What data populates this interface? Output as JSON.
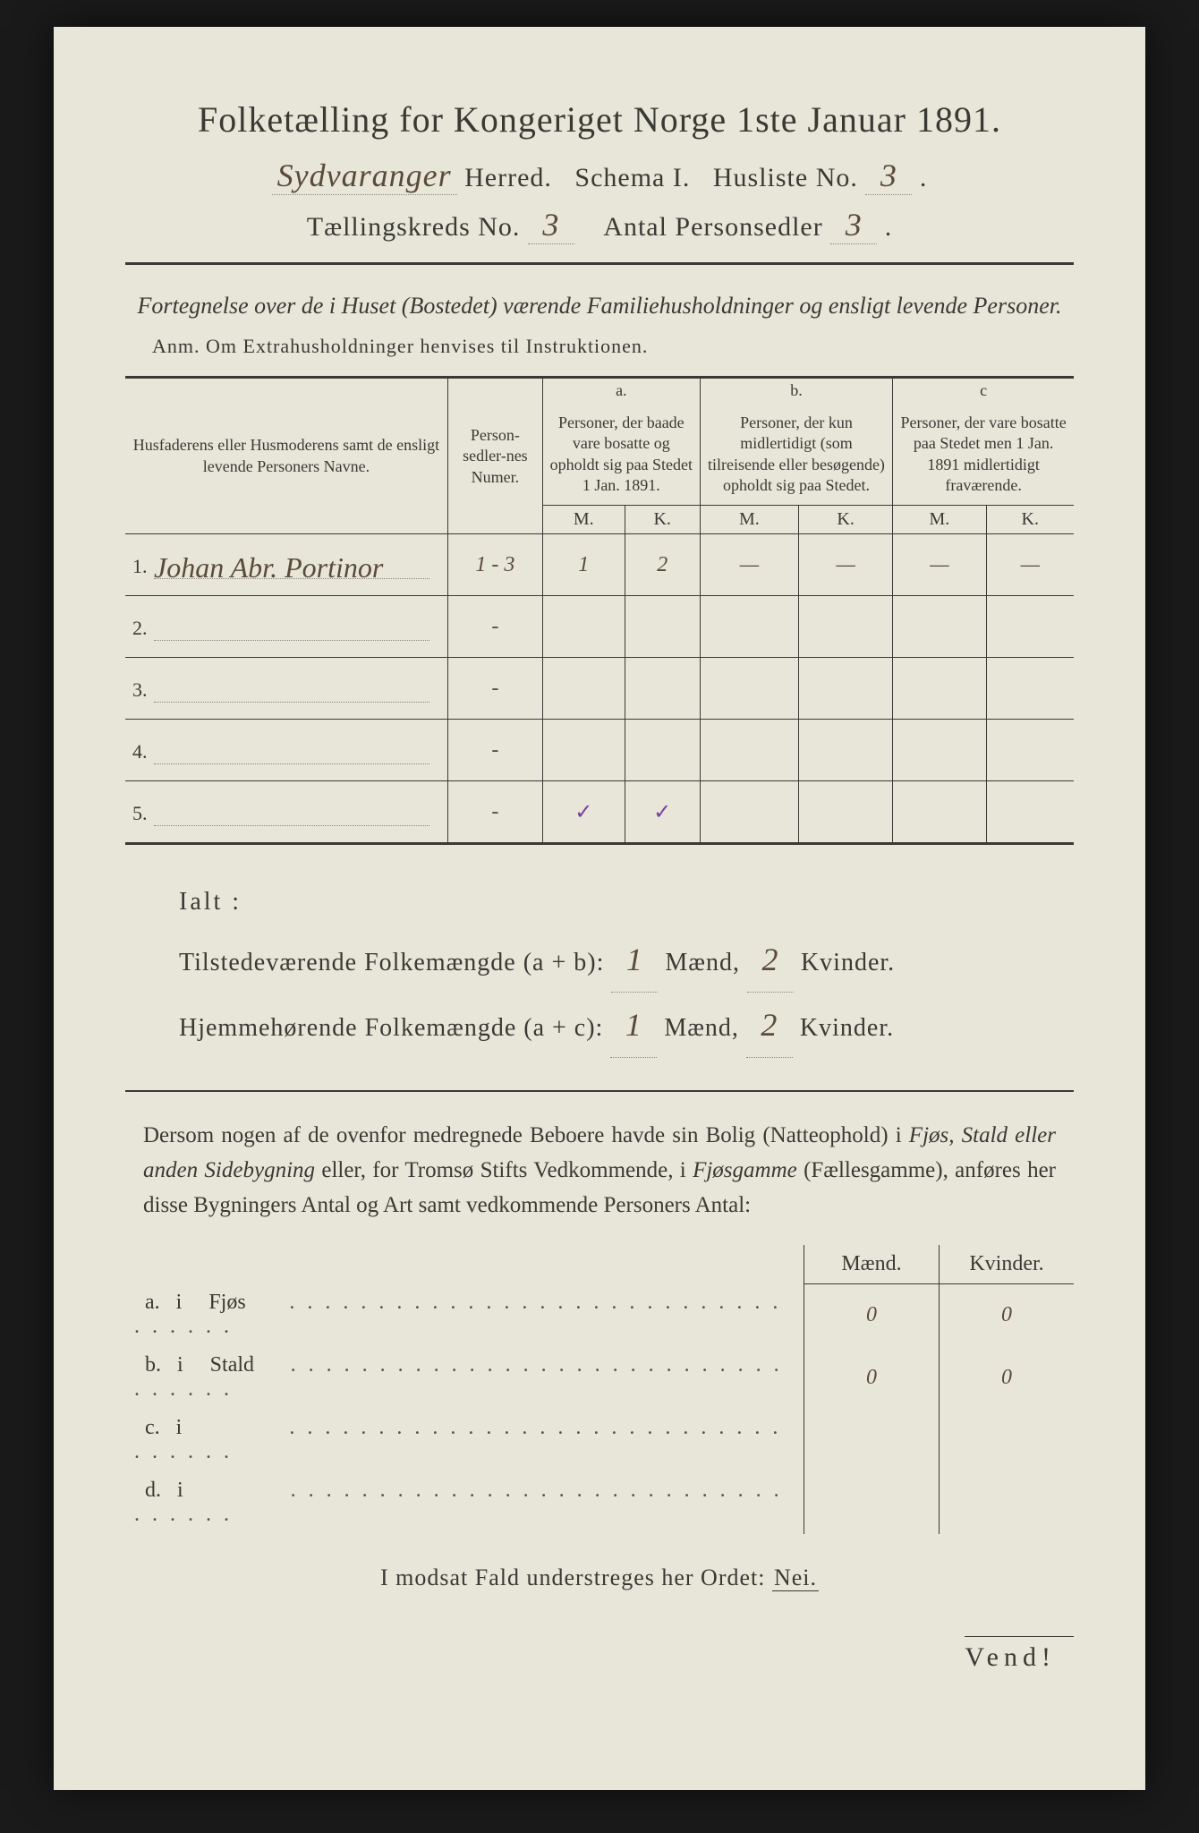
{
  "title": "Folketælling for Kongeriget Norge 1ste Januar 1891.",
  "header": {
    "herred_hand": "Sydvaranger",
    "herred_label": "Herred.",
    "schema_label": "Schema I.",
    "husliste_label": "Husliste No.",
    "husliste_no": "3",
    "kreds_label": "Tællingskreds No.",
    "kreds_no": "3",
    "personsedler_label": "Antal Personsedler",
    "personsedler_no": "3"
  },
  "subtitle": "Fortegnelse over de i Huset (Bostedet) værende Familiehusholdninger og ensligt levende Personer.",
  "anm": "Anm.  Om Extrahusholdninger henvises til Instruktionen.",
  "columns": {
    "name_head": "Husfaderens eller Husmoderens samt de ensligt levende Personers Navne.",
    "num_head": "Person-sedler-nes Numer.",
    "a_label": "a.",
    "a_head": "Personer, der baade vare bosatte og opholdt sig paa Stedet 1 Jan. 1891.",
    "b_label": "b.",
    "b_head": "Personer, der kun midlertidigt (som tilreisende eller besøgende) opholdt sig paa Stedet.",
    "c_label": "c",
    "c_head": "Personer, der vare bosatte paa Stedet men 1 Jan. 1891 midlertidigt fraværende.",
    "M": "M.",
    "K": "K."
  },
  "rows": [
    {
      "n": "1.",
      "name": "Johan Abr. Portinor",
      "nums": "1 - 3",
      "aM": "1",
      "aK": "2",
      "bM": "—",
      "bK": "—",
      "cM": "—",
      "cK": "—"
    },
    {
      "n": "2.",
      "name": "",
      "nums": "-",
      "aM": "",
      "aK": "",
      "bM": "",
      "bK": "",
      "cM": "",
      "cK": ""
    },
    {
      "n": "3.",
      "name": "",
      "nums": "-",
      "aM": "",
      "aK": "",
      "bM": "",
      "bK": "",
      "cM": "",
      "cK": ""
    },
    {
      "n": "4.",
      "name": "",
      "nums": "-",
      "aM": "",
      "aK": "",
      "bM": "",
      "bK": "",
      "cM": "",
      "cK": ""
    },
    {
      "n": "5.",
      "name": "",
      "nums": "-",
      "aM": "✓",
      "aK": "✓",
      "bM": "",
      "bK": "",
      "cM": "",
      "cK": ""
    }
  ],
  "totals": {
    "ialt": "Ialt :",
    "line1_label": "Tilstedeværende Folkemængde (a + b):",
    "line2_label": "Hjemmehørende Folkemængde (a + c):",
    "maend": "Mænd,",
    "kvinder": "Kvinder.",
    "v1m": "1",
    "v1k": "2",
    "v2m": "1",
    "v2k": "2"
  },
  "paragraph": {
    "text1": "Dersom nogen af de ovenfor medregnede Beboere havde sin Bolig (Natteophold) i ",
    "ital1": "Fjøs, Stald eller anden Sidebygning",
    "text2": " eller, for Tromsø Stifts Vedkommende, i ",
    "ital2": "Fjøsgamme",
    "text3": " (Fællesgamme), anføres her disse Bygningers Antal og Art samt vedkommende Personers Antal:"
  },
  "bottom": {
    "maend": "Mænd.",
    "kvinder": "Kvinder.",
    "rows": [
      {
        "k": "a.",
        "i": "i",
        "label": "Fjøs",
        "m": "0",
        "kv": "0"
      },
      {
        "k": "b.",
        "i": "i",
        "label": "Stald",
        "m": "0",
        "kv": "0"
      },
      {
        "k": "c.",
        "i": "i",
        "label": "",
        "m": "",
        "kv": ""
      },
      {
        "k": "d.",
        "i": "i",
        "label": "",
        "m": "",
        "kv": ""
      }
    ]
  },
  "closing": {
    "text": "I modsat Fald understreges her Ordet: ",
    "nei": "Nei."
  },
  "vend": "Vend!",
  "colors": {
    "paper": "#e8e6d8",
    "ink": "#3a3a35",
    "handwriting": "#5a4a3a",
    "tick": "#7a3fa0",
    "background": "#1a1a1a"
  },
  "fonts": {
    "body": "Georgia serif",
    "handwriting": "Brush Script cursive",
    "title_size": 40,
    "body_size": 25
  }
}
